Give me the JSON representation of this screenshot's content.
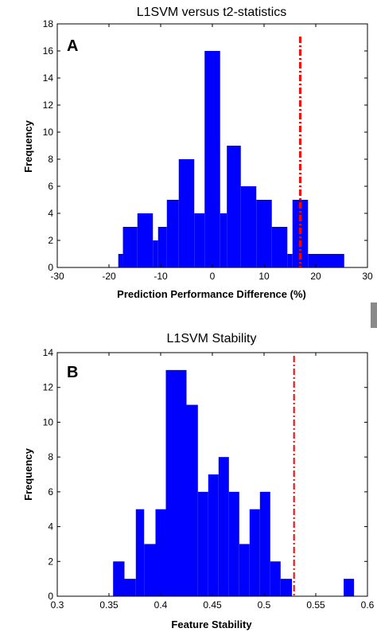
{
  "chart_data": [
    {
      "type": "bar",
      "panel_label": "A",
      "title": "L1SVM versus t2-statistics",
      "xlabel": "Prediction Performance Difference (%)",
      "ylabel": "Frequency",
      "xlim": [
        -30,
        30
      ],
      "ylim": [
        0,
        18
      ],
      "xticks": [
        -30,
        -20,
        -10,
        0,
        10,
        20,
        30
      ],
      "yticks": [
        0,
        2,
        4,
        6,
        8,
        10,
        12,
        14,
        16,
        18
      ],
      "bins": [
        {
          "x0": -18.2,
          "x1": -17.3,
          "count": 1
        },
        {
          "x0": -17.3,
          "x1": -14.5,
          "count": 3
        },
        {
          "x0": -14.5,
          "x1": -11.5,
          "count": 4
        },
        {
          "x0": -11.5,
          "x1": -10.5,
          "count": 2
        },
        {
          "x0": -10.5,
          "x1": -8.8,
          "count": 3
        },
        {
          "x0": -8.8,
          "x1": -6.5,
          "count": 5
        },
        {
          "x0": -6.5,
          "x1": -3.5,
          "count": 8
        },
        {
          "x0": -3.5,
          "x1": -1.5,
          "count": 4
        },
        {
          "x0": -1.5,
          "x1": 1.5,
          "count": 16
        },
        {
          "x0": 1.5,
          "x1": 2.8,
          "count": 4
        },
        {
          "x0": 2.8,
          "x1": 5.5,
          "count": 9
        },
        {
          "x0": 5.5,
          "x1": 8.5,
          "count": 6
        },
        {
          "x0": 8.5,
          "x1": 11.5,
          "count": 5
        },
        {
          "x0": 11.5,
          "x1": 14.5,
          "count": 3
        },
        {
          "x0": 14.5,
          "x1": 15.5,
          "count": 1
        },
        {
          "x0": 15.5,
          "x1": 18.5,
          "count": 5
        },
        {
          "x0": 18.5,
          "x1": 25.5,
          "count": 1
        }
      ],
      "threshold": 17,
      "bar_color": "#0000ff",
      "threshold_color": "#ff0000"
    },
    {
      "type": "bar",
      "panel_label": "B",
      "title": "L1SVM Stability",
      "xlabel": "Feature Stability",
      "ylabel": "Frequency",
      "xlim": [
        0.3,
        0.6
      ],
      "ylim": [
        0,
        14
      ],
      "xticks": [
        "0.3",
        "0.35",
        "0.4",
        "0.45",
        "0.5",
        "0.55",
        "0.6"
      ],
      "yticks": [
        0,
        2,
        4,
        6,
        8,
        10,
        12,
        14
      ],
      "bins": [
        {
          "x0": 0.354,
          "x1": 0.365,
          "count": 2
        },
        {
          "x0": 0.365,
          "x1": 0.376,
          "count": 1
        },
        {
          "x0": 0.376,
          "x1": 0.384,
          "count": 5
        },
        {
          "x0": 0.384,
          "x1": 0.395,
          "count": 3
        },
        {
          "x0": 0.395,
          "x1": 0.405,
          "count": 5
        },
        {
          "x0": 0.405,
          "x1": 0.425,
          "count": 13
        },
        {
          "x0": 0.425,
          "x1": 0.436,
          "count": 11
        },
        {
          "x0": 0.436,
          "x1": 0.446,
          "count": 6
        },
        {
          "x0": 0.446,
          "x1": 0.456,
          "count": 7
        },
        {
          "x0": 0.456,
          "x1": 0.466,
          "count": 8
        },
        {
          "x0": 0.466,
          "x1": 0.476,
          "count": 6
        },
        {
          "x0": 0.476,
          "x1": 0.486,
          "count": 3
        },
        {
          "x0": 0.486,
          "x1": 0.496,
          "count": 5
        },
        {
          "x0": 0.496,
          "x1": 0.506,
          "count": 6
        },
        {
          "x0": 0.506,
          "x1": 0.516,
          "count": 2
        },
        {
          "x0": 0.516,
          "x1": 0.527,
          "count": 1
        },
        {
          "x0": 0.577,
          "x1": 0.587,
          "count": 1
        }
      ],
      "threshold": 0.529,
      "bar_color": "#0000ff",
      "threshold_color": "#ff0000"
    }
  ]
}
